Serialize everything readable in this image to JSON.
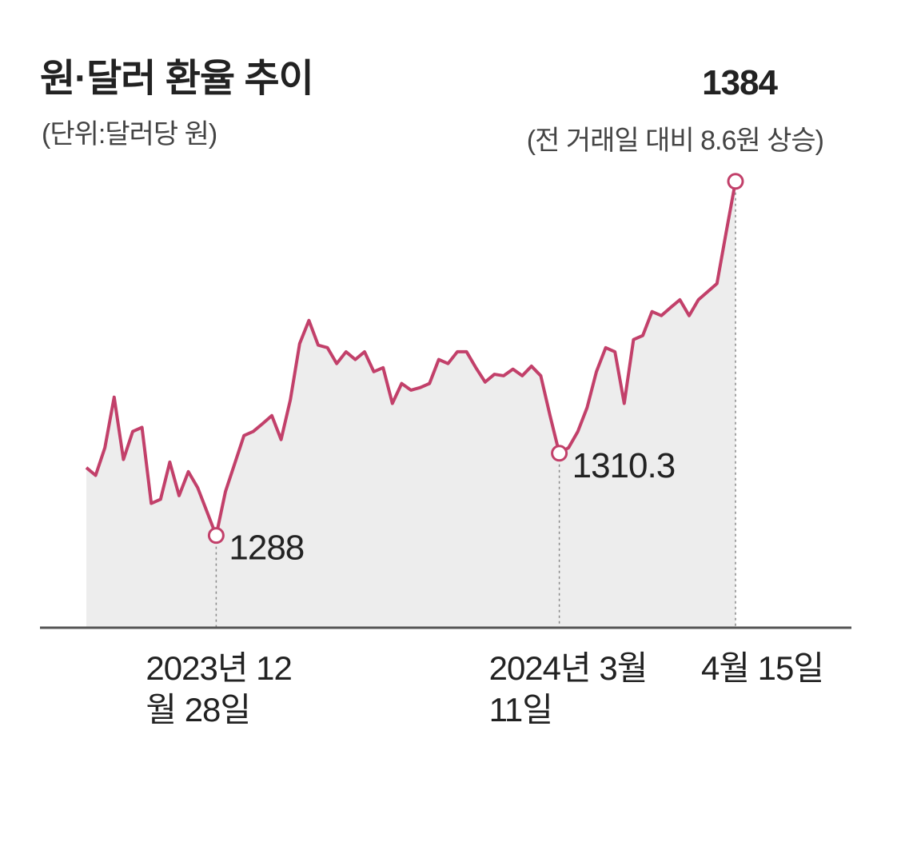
{
  "chart_data": {
    "type": "line",
    "title": "원·달러 환율 추이",
    "subtitle": "(단위:달러당 원)",
    "annotation": "(전 거래일 대비 8.6원 상승)",
    "categories": [
      null,
      null,
      null,
      null,
      null,
      null,
      null,
      null,
      null,
      null,
      null,
      null,
      null,
      null,
      "2023년 12월 28일",
      null,
      null,
      null,
      null,
      null,
      null,
      null,
      null,
      null,
      null,
      null,
      null,
      null,
      null,
      null,
      null,
      null,
      null,
      null,
      null,
      null,
      null,
      null,
      null,
      null,
      null,
      null,
      null,
      null,
      null,
      null,
      null,
      null,
      null,
      null,
      null,
      "2024년 3월 11일",
      null,
      null,
      null,
      null,
      null,
      null,
      null,
      null,
      null,
      null,
      null,
      null,
      null,
      null,
      null,
      null,
      null,
      null,
      "4월 15일"
    ],
    "values": [
      1306.4,
      1304.3,
      1311.8,
      1325.5,
      1308.6,
      1316.2,
      1317.3,
      1296.7,
      1297.8,
      1307.9,
      1298.8,
      1305.3,
      1301.0,
      1294.5,
      1288,
      1299.9,
      1307.5,
      1315.1,
      1316.2,
      1318.3,
      1320.5,
      1314.0,
      1324.8,
      1340.0,
      1346.3,
      1339.6,
      1338.9,
      1334.6,
      1337.8,
      1335.7,
      1337.8,
      1332.4,
      1333.5,
      1323.8,
      1329.2,
      1327.4,
      1328.1,
      1329.2,
      1335.7,
      1334.6,
      1337.8,
      1337.8,
      1333.5,
      1329.6,
      1331.7,
      1331.3,
      1333.1,
      1331.3,
      1333.9,
      1331.3,
      1320.5,
      1310.3,
      1311.8,
      1316.2,
      1322.7,
      1332.4,
      1338.9,
      1337.8,
      1323.8,
      1341.1,
      1342.2,
      1348.7,
      1347.6,
      1349.8,
      1351.9,
      1347.6,
      1351.9,
      1354.1,
      1356.3,
      1370.3,
      1384
    ],
    "color": "#c2406a",
    "area_color": "#ededed",
    "ylim": [
      1263,
      1400
    ]
  }
}
